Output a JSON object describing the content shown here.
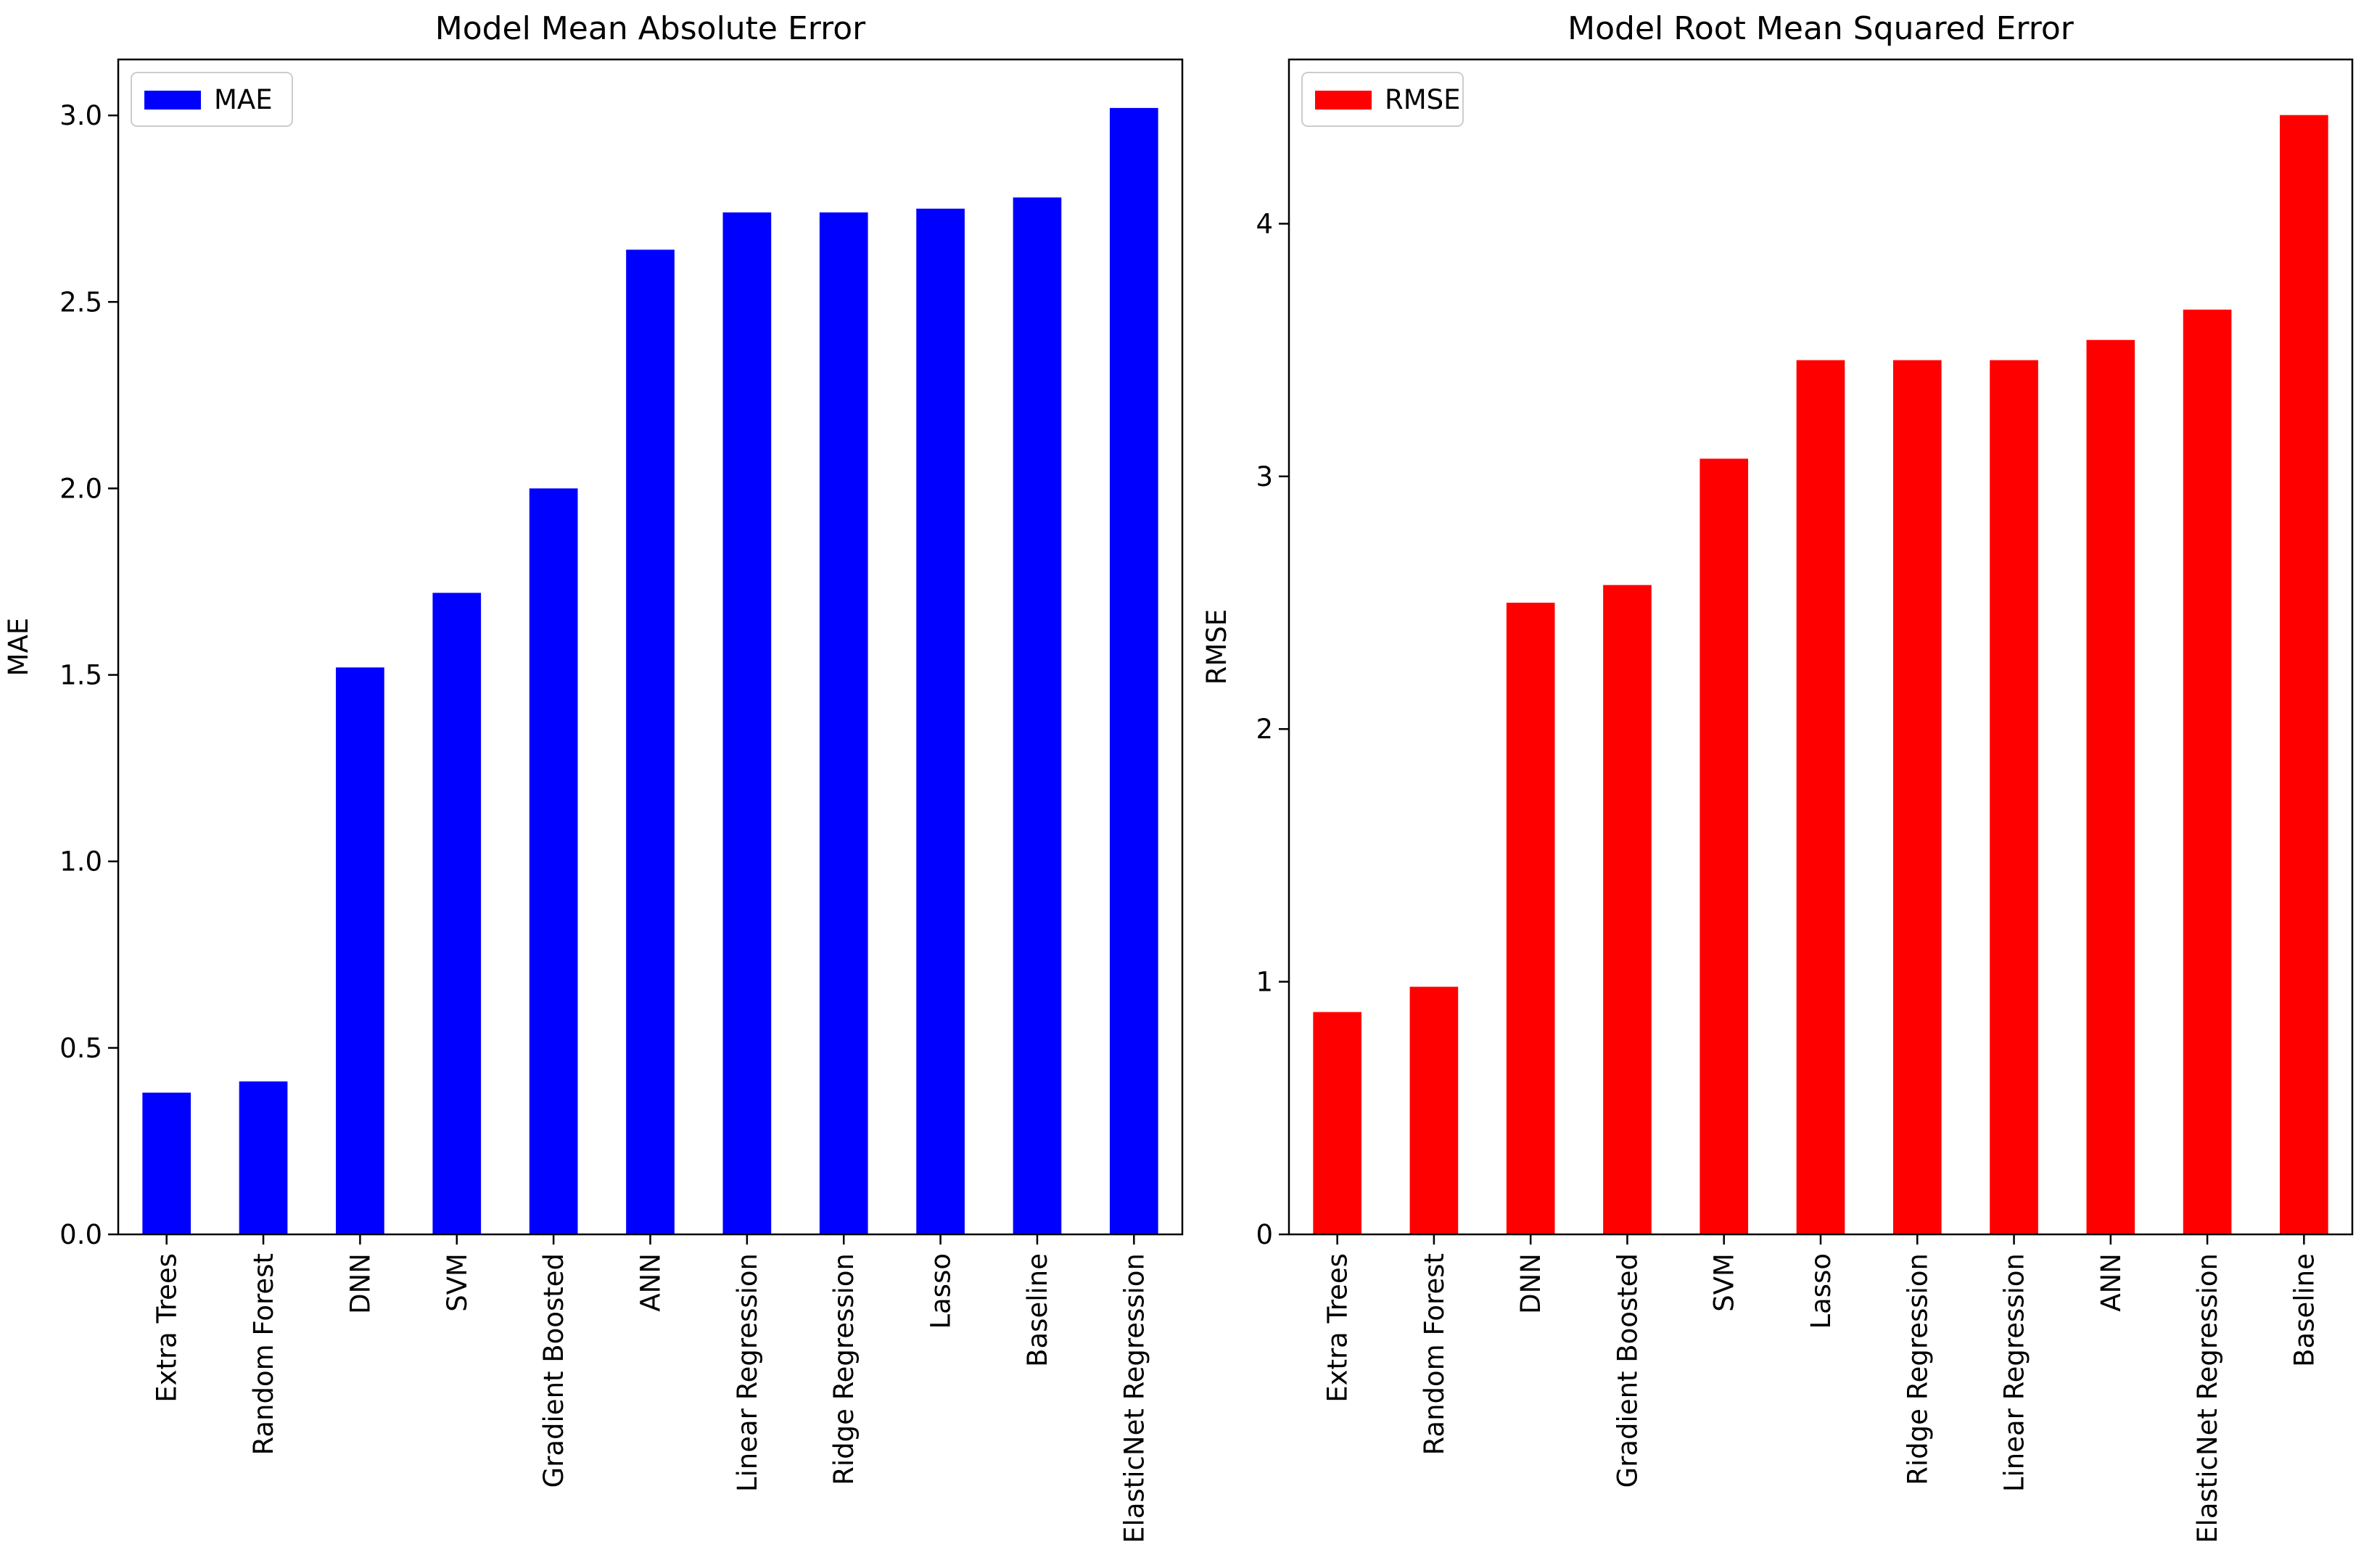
{
  "chart_data": [
    {
      "type": "bar",
      "title": "Model Mean Absolute Error",
      "xlabel": "",
      "ylabel": "MAE",
      "legend": {
        "label": "MAE",
        "position": "top-left"
      },
      "color": "#0000ff",
      "ylim": [
        0,
        3.15
      ],
      "yticks": [
        0.0,
        0.5,
        1.0,
        1.5,
        2.0,
        2.5,
        3.0
      ],
      "ytick_labels": [
        "0.0",
        "0.5",
        "1.0",
        "1.5",
        "2.0",
        "2.5",
        "3.0"
      ],
      "categories": [
        "Extra Trees",
        "Random Forest",
        "DNN",
        "SVM",
        "Gradient Boosted",
        "ANN",
        "Linear Regression",
        "Ridge Regression",
        "Lasso",
        "Baseline",
        "ElasticNet Regression"
      ],
      "values": [
        0.38,
        0.41,
        1.52,
        1.72,
        2.0,
        2.64,
        2.74,
        2.74,
        2.75,
        2.78,
        3.02
      ]
    },
    {
      "type": "bar",
      "title": "Model Root Mean Squared Error",
      "xlabel": "",
      "ylabel": "RMSE",
      "legend": {
        "label": "RMSE",
        "position": "top-left"
      },
      "color": "#ff0000",
      "ylim": [
        0,
        4.65
      ],
      "yticks": [
        0,
        1,
        2,
        3,
        4
      ],
      "ytick_labels": [
        "0",
        "1",
        "2",
        "3",
        "4"
      ],
      "categories": [
        "Extra Trees",
        "Random Forest",
        "DNN",
        "Gradient Boosted",
        "SVM",
        "Lasso",
        "Ridge Regression",
        "Linear Regression",
        "ANN",
        "ElasticNet Regression",
        "Baseline"
      ],
      "values": [
        0.88,
        0.98,
        2.5,
        2.57,
        3.07,
        3.46,
        3.46,
        3.46,
        3.54,
        3.66,
        4.43
      ]
    }
  ]
}
